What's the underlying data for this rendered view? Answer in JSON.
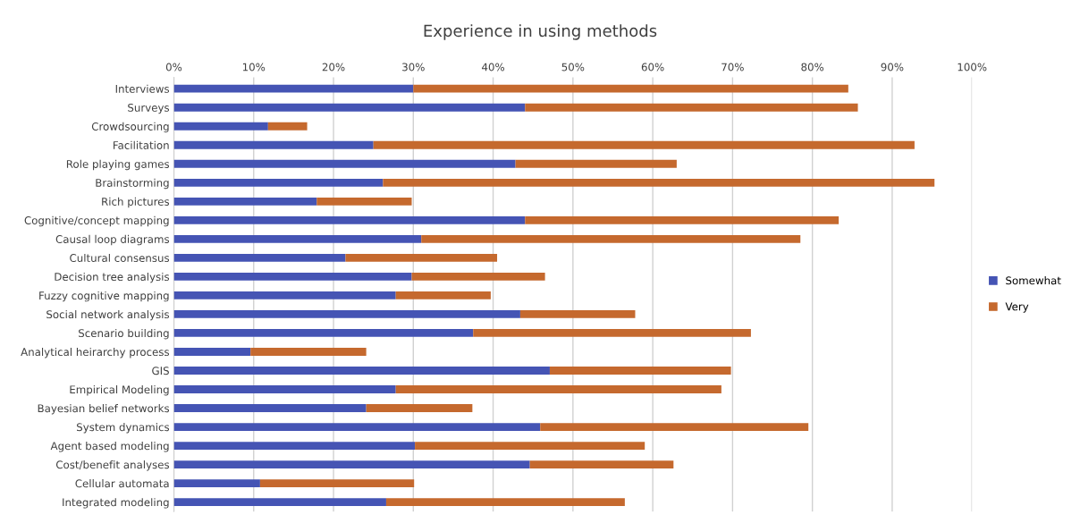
{
  "chart_data": {
    "type": "bar",
    "orientation": "horizontal",
    "stacked": true,
    "title": "Experience in using methods",
    "categories": [
      "Interviews",
      "Surveys",
      "Crowdsourcing",
      "Facilitation",
      "Role playing games",
      "Brainstorming",
      "Rich pictures",
      "Cognitive/concept mapping",
      "Causal loop diagrams",
      "Cultural consensus",
      "Decision tree analysis",
      "Fuzzy cognitive mapping",
      "Social network analysis",
      "Scenario building",
      "Analytical heirarchy process",
      "GIS",
      "Empirical Modeling",
      "Bayesian belief networks",
      "System dynamics",
      "Agent based modeling",
      "Cost/benefit analyses",
      "Cellular automata",
      "Integrated modeling"
    ],
    "series": [
      {
        "name": "Somewhat",
        "color": "#4554b4",
        "values": [
          30,
          44,
          11.8,
          25,
          42.8,
          26.2,
          17.9,
          44,
          31,
          21.5,
          29.8,
          27.8,
          43.4,
          37.5,
          9.6,
          47.1,
          27.8,
          24.1,
          45.9,
          30.2,
          44.6,
          10.8,
          26.6
        ]
      },
      {
        "name": "Very",
        "color": "#c5692e",
        "values": [
          54.5,
          41.7,
          4.9,
          67.8,
          20.2,
          69.1,
          11.9,
          39.3,
          47.5,
          19,
          16.7,
          11.9,
          14.4,
          34.8,
          14.5,
          22.7,
          40.8,
          13.3,
          33.6,
          28.8,
          18,
          19.3,
          29.9
        ]
      }
    ],
    "xlim": [
      0,
      100
    ],
    "xticks": [
      {
        "value": 0,
        "label": "0%"
      },
      {
        "value": 10,
        "label": "10%"
      },
      {
        "value": 20,
        "label": "20%"
      },
      {
        "value": 30,
        "label": "30%"
      },
      {
        "value": 40,
        "label": "40%"
      },
      {
        "value": 50,
        "label": "50%"
      },
      {
        "value": 60,
        "label": "60%"
      },
      {
        "value": 70,
        "label": "70%"
      },
      {
        "value": 80,
        "label": "80%"
      },
      {
        "value": 90,
        "label": "90%"
      },
      {
        "value": 100,
        "label": "100%"
      }
    ],
    "grid": "x",
    "legend": "right"
  }
}
